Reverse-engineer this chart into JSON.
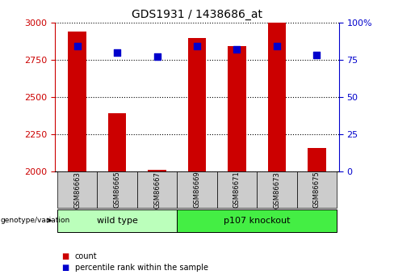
{
  "title": "GDS1931 / 1438686_at",
  "samples": [
    "GSM86663",
    "GSM86665",
    "GSM86667",
    "GSM86669",
    "GSM86671",
    "GSM86673",
    "GSM86675"
  ],
  "count_values": [
    2940,
    2390,
    2010,
    2895,
    2840,
    3000,
    2160
  ],
  "percentile_values": [
    84,
    80,
    77,
    84,
    82,
    84,
    78
  ],
  "ylim_left": [
    2000,
    3000
  ],
  "ylim_right": [
    0,
    100
  ],
  "yticks_left": [
    2000,
    2250,
    2500,
    2750,
    3000
  ],
  "yticks_right": [
    0,
    25,
    50,
    75,
    100
  ],
  "groups": [
    {
      "label": "wild type",
      "samples": [
        0,
        1,
        2
      ],
      "color": "#bbffbb"
    },
    {
      "label": "p107 knockout",
      "samples": [
        3,
        4,
        5,
        6
      ],
      "color": "#44ee44"
    }
  ],
  "bar_color": "#cc0000",
  "dot_color": "#0000cc",
  "bar_width": 0.45,
  "dot_size": 40,
  "background_color": "#ffffff",
  "axis_color_left": "#cc0000",
  "axis_color_right": "#0000cc",
  "grid_color": "#000000",
  "sample_bg_color": "#cccccc",
  "legend_count_color": "#cc0000",
  "legend_pct_color": "#0000cc"
}
